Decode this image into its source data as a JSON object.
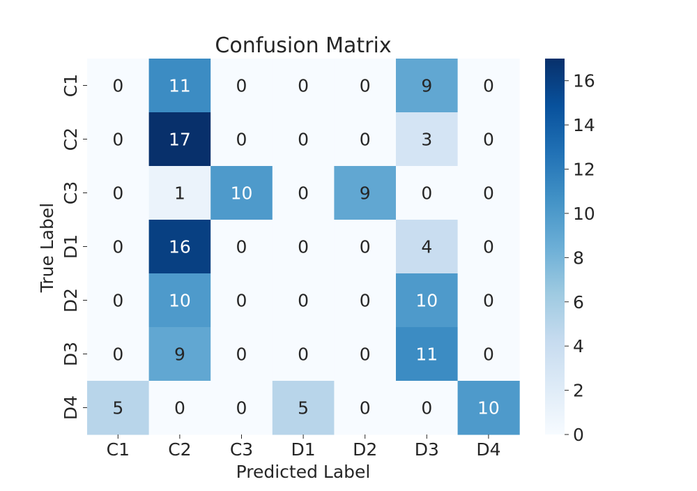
{
  "chart_data": {
    "type": "heatmap",
    "title": "Confusion Matrix",
    "xlabel": "Predicted Label",
    "ylabel": "True Label",
    "x_categories": [
      "C1",
      "C2",
      "C3",
      "D1",
      "D2",
      "D3",
      "D4"
    ],
    "y_categories": [
      "C1",
      "C2",
      "C3",
      "D1",
      "D2",
      "D3",
      "D4"
    ],
    "values": [
      [
        0,
        11,
        0,
        0,
        0,
        9,
        0
      ],
      [
        0,
        17,
        0,
        0,
        0,
        3,
        0
      ],
      [
        0,
        1,
        10,
        0,
        9,
        0,
        0
      ],
      [
        0,
        16,
        0,
        0,
        0,
        4,
        0
      ],
      [
        0,
        10,
        0,
        0,
        0,
        10,
        0
      ],
      [
        0,
        9,
        0,
        0,
        0,
        11,
        0
      ],
      [
        5,
        0,
        0,
        5,
        0,
        0,
        10
      ]
    ],
    "colormap": "Blues",
    "colorbar": {
      "range": [
        0,
        17
      ],
      "ticks": [
        "0",
        "2",
        "4",
        "6",
        "8",
        "10",
        "12",
        "14",
        "16"
      ]
    }
  }
}
